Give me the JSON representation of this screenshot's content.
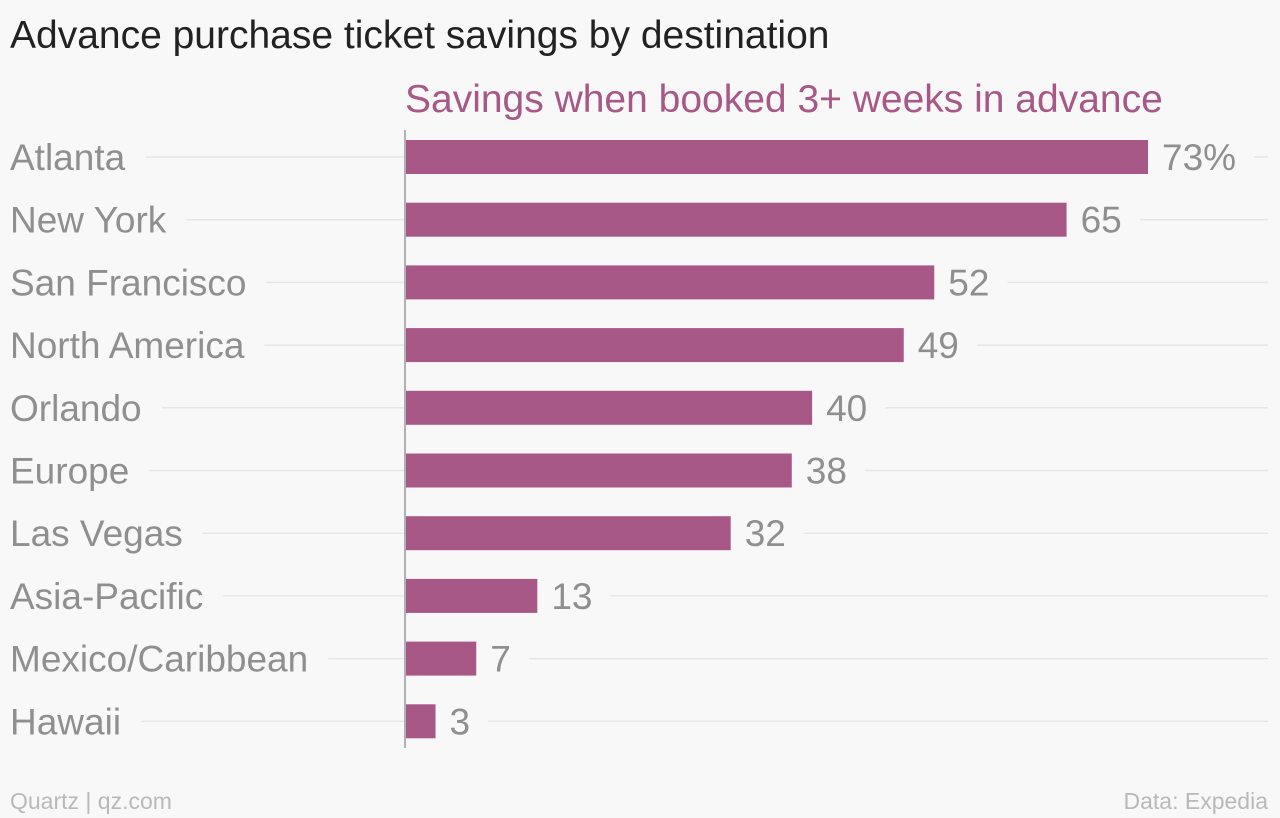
{
  "title": "Advance purchase ticket savings by destination",
  "footer": {
    "left": "Quartz | qz.com",
    "right": "Data: Expedia"
  },
  "colors": {
    "bar": "#a85887",
    "series_label": "#a85887",
    "category_label": "#8f8f8f",
    "value_label": "#8f8f8f",
    "gridline": "#e6e6e6",
    "axis": "#999999",
    "background": "#f8f8f8"
  },
  "chart_data": {
    "type": "bar",
    "orientation": "horizontal",
    "title": "Advance purchase ticket savings by destination",
    "series": [
      {
        "name": "Savings when booked 3+ weeks in advance",
        "values": [
          73,
          65,
          52,
          49,
          40,
          38,
          32,
          13,
          7,
          3
        ]
      }
    ],
    "categories": [
      "Atlanta",
      "New York",
      "San Francisco",
      "North America",
      "Orlando",
      "Europe",
      "Las Vegas",
      "Asia-Pacific",
      "Mexico/Caribbean",
      "Hawaii"
    ],
    "value_labels": [
      "73%",
      "65",
      "52",
      "49",
      "40",
      "38",
      "32",
      "13",
      "7",
      "3"
    ],
    "xlim": [
      0,
      73
    ],
    "unit": "%",
    "grid": true,
    "legend": "none"
  }
}
